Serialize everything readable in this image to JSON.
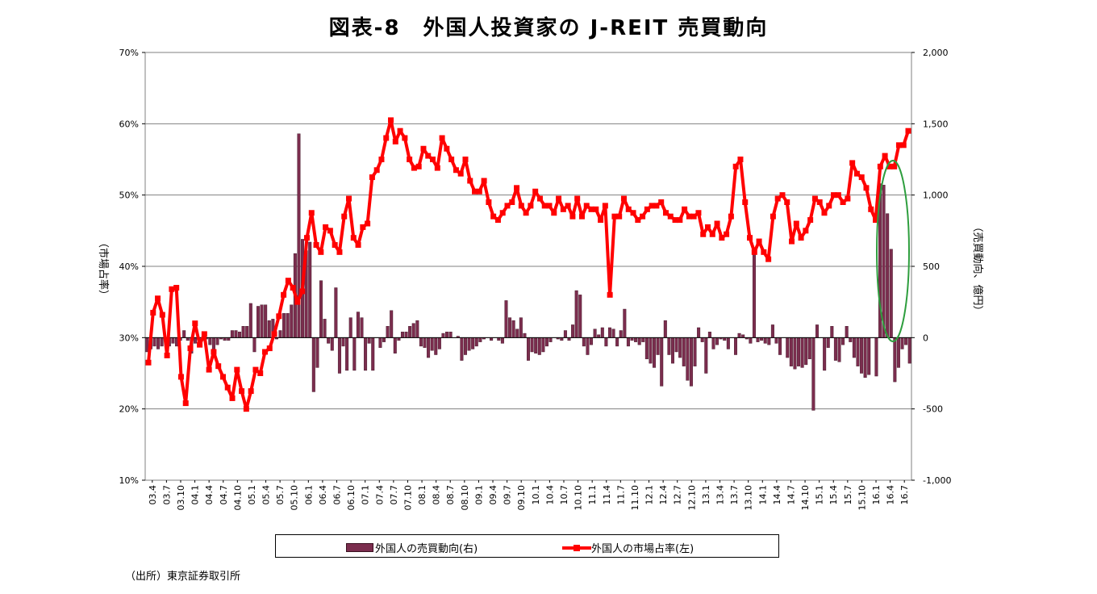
{
  "title": "図表-8　外国人投資家の J-REIT 売買動向",
  "source_note": "（出所）東京証券取引所",
  "colors": {
    "bar": "#7B2D4E",
    "line": "#FF0000",
    "grid": "#808080",
    "highlight": "#2E9E3E"
  },
  "chart_data": {
    "type": "bar+line",
    "y_left": {
      "label": "（市場占率）",
      "range": [
        10,
        70
      ],
      "ticks": [
        "10%",
        "20%",
        "30%",
        "40%",
        "50%",
        "60%",
        "70%"
      ]
    },
    "y_right": {
      "label": "（売買動向、億円）",
      "range": [
        -1000,
        2000
      ],
      "ticks": [
        "-1,000",
        "-500",
        "0",
        "500",
        "1,000",
        "1,500",
        "2,000"
      ]
    },
    "x_tick_labels": [
      "03.4",
      "03.7",
      "03.10",
      "04.1",
      "04.4",
      "04.7",
      "04.10",
      "05.1",
      "05.4",
      "05.7",
      "05.10",
      "06.1",
      "06.4",
      "06.7",
      "06.10",
      "07.1",
      "07.4",
      "07.7",
      "07.10",
      "08.1",
      "08.4",
      "08.7",
      "08.10",
      "09.1",
      "09.4",
      "09.7",
      "09.10",
      "10.1",
      "10.4",
      "10.7",
      "10.10",
      "11.1",
      "11.4",
      "11.7",
      "11.10",
      "12.1",
      "12.4",
      "12.7",
      "12.10",
      "13.1",
      "13.4",
      "13.7",
      "13.10",
      "14.1",
      "14.4",
      "14.7",
      "14.10",
      "15.1",
      "15.4",
      "15.7",
      "15.10",
      "16.1",
      "16.4",
      "16.7"
    ],
    "series": [
      {
        "name": "外国人の売買動向(右)",
        "type": "bar",
        "axis": "right",
        "values": [
          -100,
          -80,
          -60,
          -80,
          -60,
          -10,
          -60,
          -40,
          -60,
          -20,
          50,
          -20,
          -110,
          -40,
          -20,
          -20,
          -10,
          -50,
          -90,
          -50,
          -10,
          -20,
          -20,
          50,
          50,
          40,
          80,
          80,
          240,
          -100,
          220,
          230,
          230,
          120,
          130,
          -10,
          50,
          170,
          170,
          230,
          590,
          1430,
          690,
          610,
          670,
          -380,
          -210,
          400,
          130,
          -40,
          -90,
          350,
          -250,
          -60,
          -230,
          140,
          -230,
          180,
          140,
          -230,
          -40,
          -230,
          0,
          -70,
          -30,
          80,
          190,
          -110,
          -20,
          40,
          40,
          80,
          100,
          120,
          -60,
          -70,
          -140,
          -90,
          -120,
          -80,
          30,
          40,
          40,
          0,
          10,
          -160,
          -120,
          -90,
          -80,
          -60,
          -30,
          -10,
          0,
          -20,
          0,
          -20,
          -40,
          260,
          140,
          120,
          60,
          140,
          30,
          -160,
          -100,
          -110,
          -120,
          -100,
          -60,
          -30,
          0,
          -10,
          -20,
          50,
          -20,
          90,
          330,
          300,
          -60,
          -120,
          -50,
          60,
          20,
          70,
          -60,
          70,
          60,
          -60,
          50,
          200,
          -60,
          -20,
          -30,
          -50,
          -30,
          -150,
          -180,
          -210,
          -120,
          -340,
          120,
          -120,
          -180,
          -100,
          -140,
          -200,
          -300,
          -340,
          -200,
          70,
          -30,
          -250,
          40,
          -80,
          -50,
          -10,
          -20,
          -80,
          0,
          -120,
          30,
          20,
          -10,
          -40,
          600,
          -30,
          -20,
          -40,
          -50,
          90,
          -40,
          -120,
          0,
          -140,
          -200,
          -220,
          -200,
          -210,
          -190,
          -150,
          -510,
          90,
          0,
          -230,
          -70,
          80,
          -160,
          -170,
          -50,
          80,
          -30,
          -140,
          -200,
          -250,
          -280,
          -260,
          0,
          -270,
          1080,
          1070,
          870,
          620,
          -310,
          -210,
          -80,
          -50,
          -180
        ]
      },
      {
        "name": "外国人の市場占率(左)",
        "type": "line",
        "axis": "left",
        "values": [
          26.5,
          33.5,
          35.5,
          33.2,
          27.5,
          36.8,
          37.0,
          24.5,
          20.8,
          28.5,
          32.0,
          29.0,
          30.5,
          25.5,
          28.0,
          26.0,
          24.5,
          23.0,
          21.5,
          25.5,
          22.5,
          20.0,
          22.5,
          25.5,
          25.0,
          28.0,
          28.5,
          30.5,
          33.0,
          36.0,
          38.0,
          37.0,
          35.0,
          36.5,
          44.0,
          47.5,
          43.0,
          42.0,
          45.5,
          45.0,
          43.0,
          42.0,
          47.0,
          49.5,
          44.0,
          43.0,
          45.5,
          46.0,
          52.5,
          53.5,
          55.0,
          58.0,
          60.5,
          57.5,
          59.0,
          58.0,
          55.0,
          53.8,
          54.0,
          56.5,
          55.5,
          55.0,
          53.8,
          58.0,
          56.5,
          55.0,
          53.5,
          53.0,
          55.0,
          52.0,
          50.5,
          50.5,
          52.0,
          49.0,
          47.0,
          46.5,
          47.5,
          48.5,
          49.0,
          51.0,
          48.5,
          47.5,
          48.5,
          50.5,
          49.5,
          48.5,
          48.5,
          47.5,
          49.5,
          48.0,
          48.5,
          47.0,
          49.5,
          47.0,
          48.5,
          48.0,
          48.0,
          46.5,
          48.5,
          36.0,
          47.0,
          47.0,
          49.5,
          48.0,
          47.5,
          46.5,
          47.0,
          48.0,
          48.5,
          48.5,
          49.0,
          47.5,
          47.0,
          46.5,
          46.5,
          48.0,
          47.0,
          47.0,
          47.5,
          44.5,
          45.5,
          44.5,
          46.0,
          44.0,
          44.5,
          47.0,
          54.0,
          55.0,
          49.0,
          44.0,
          42.0,
          43.5,
          42.0,
          41.0,
          47.0,
          49.5,
          50.0,
          49.0,
          43.5,
          46.0,
          44.0,
          45.0,
          46.5,
          49.5,
          49.0,
          47.5,
          48.5,
          50.0,
          50.0,
          49.0,
          49.5,
          54.5,
          53.0,
          52.5,
          51.0,
          48.0,
          46.5,
          54.0,
          55.5,
          54.0,
          54.0,
          57.0,
          57.0,
          59.0
        ]
      }
    ],
    "annotation": "green ellipse highlighting 2016 early-year bars",
    "legend_position": "bottom",
    "grid": true
  }
}
